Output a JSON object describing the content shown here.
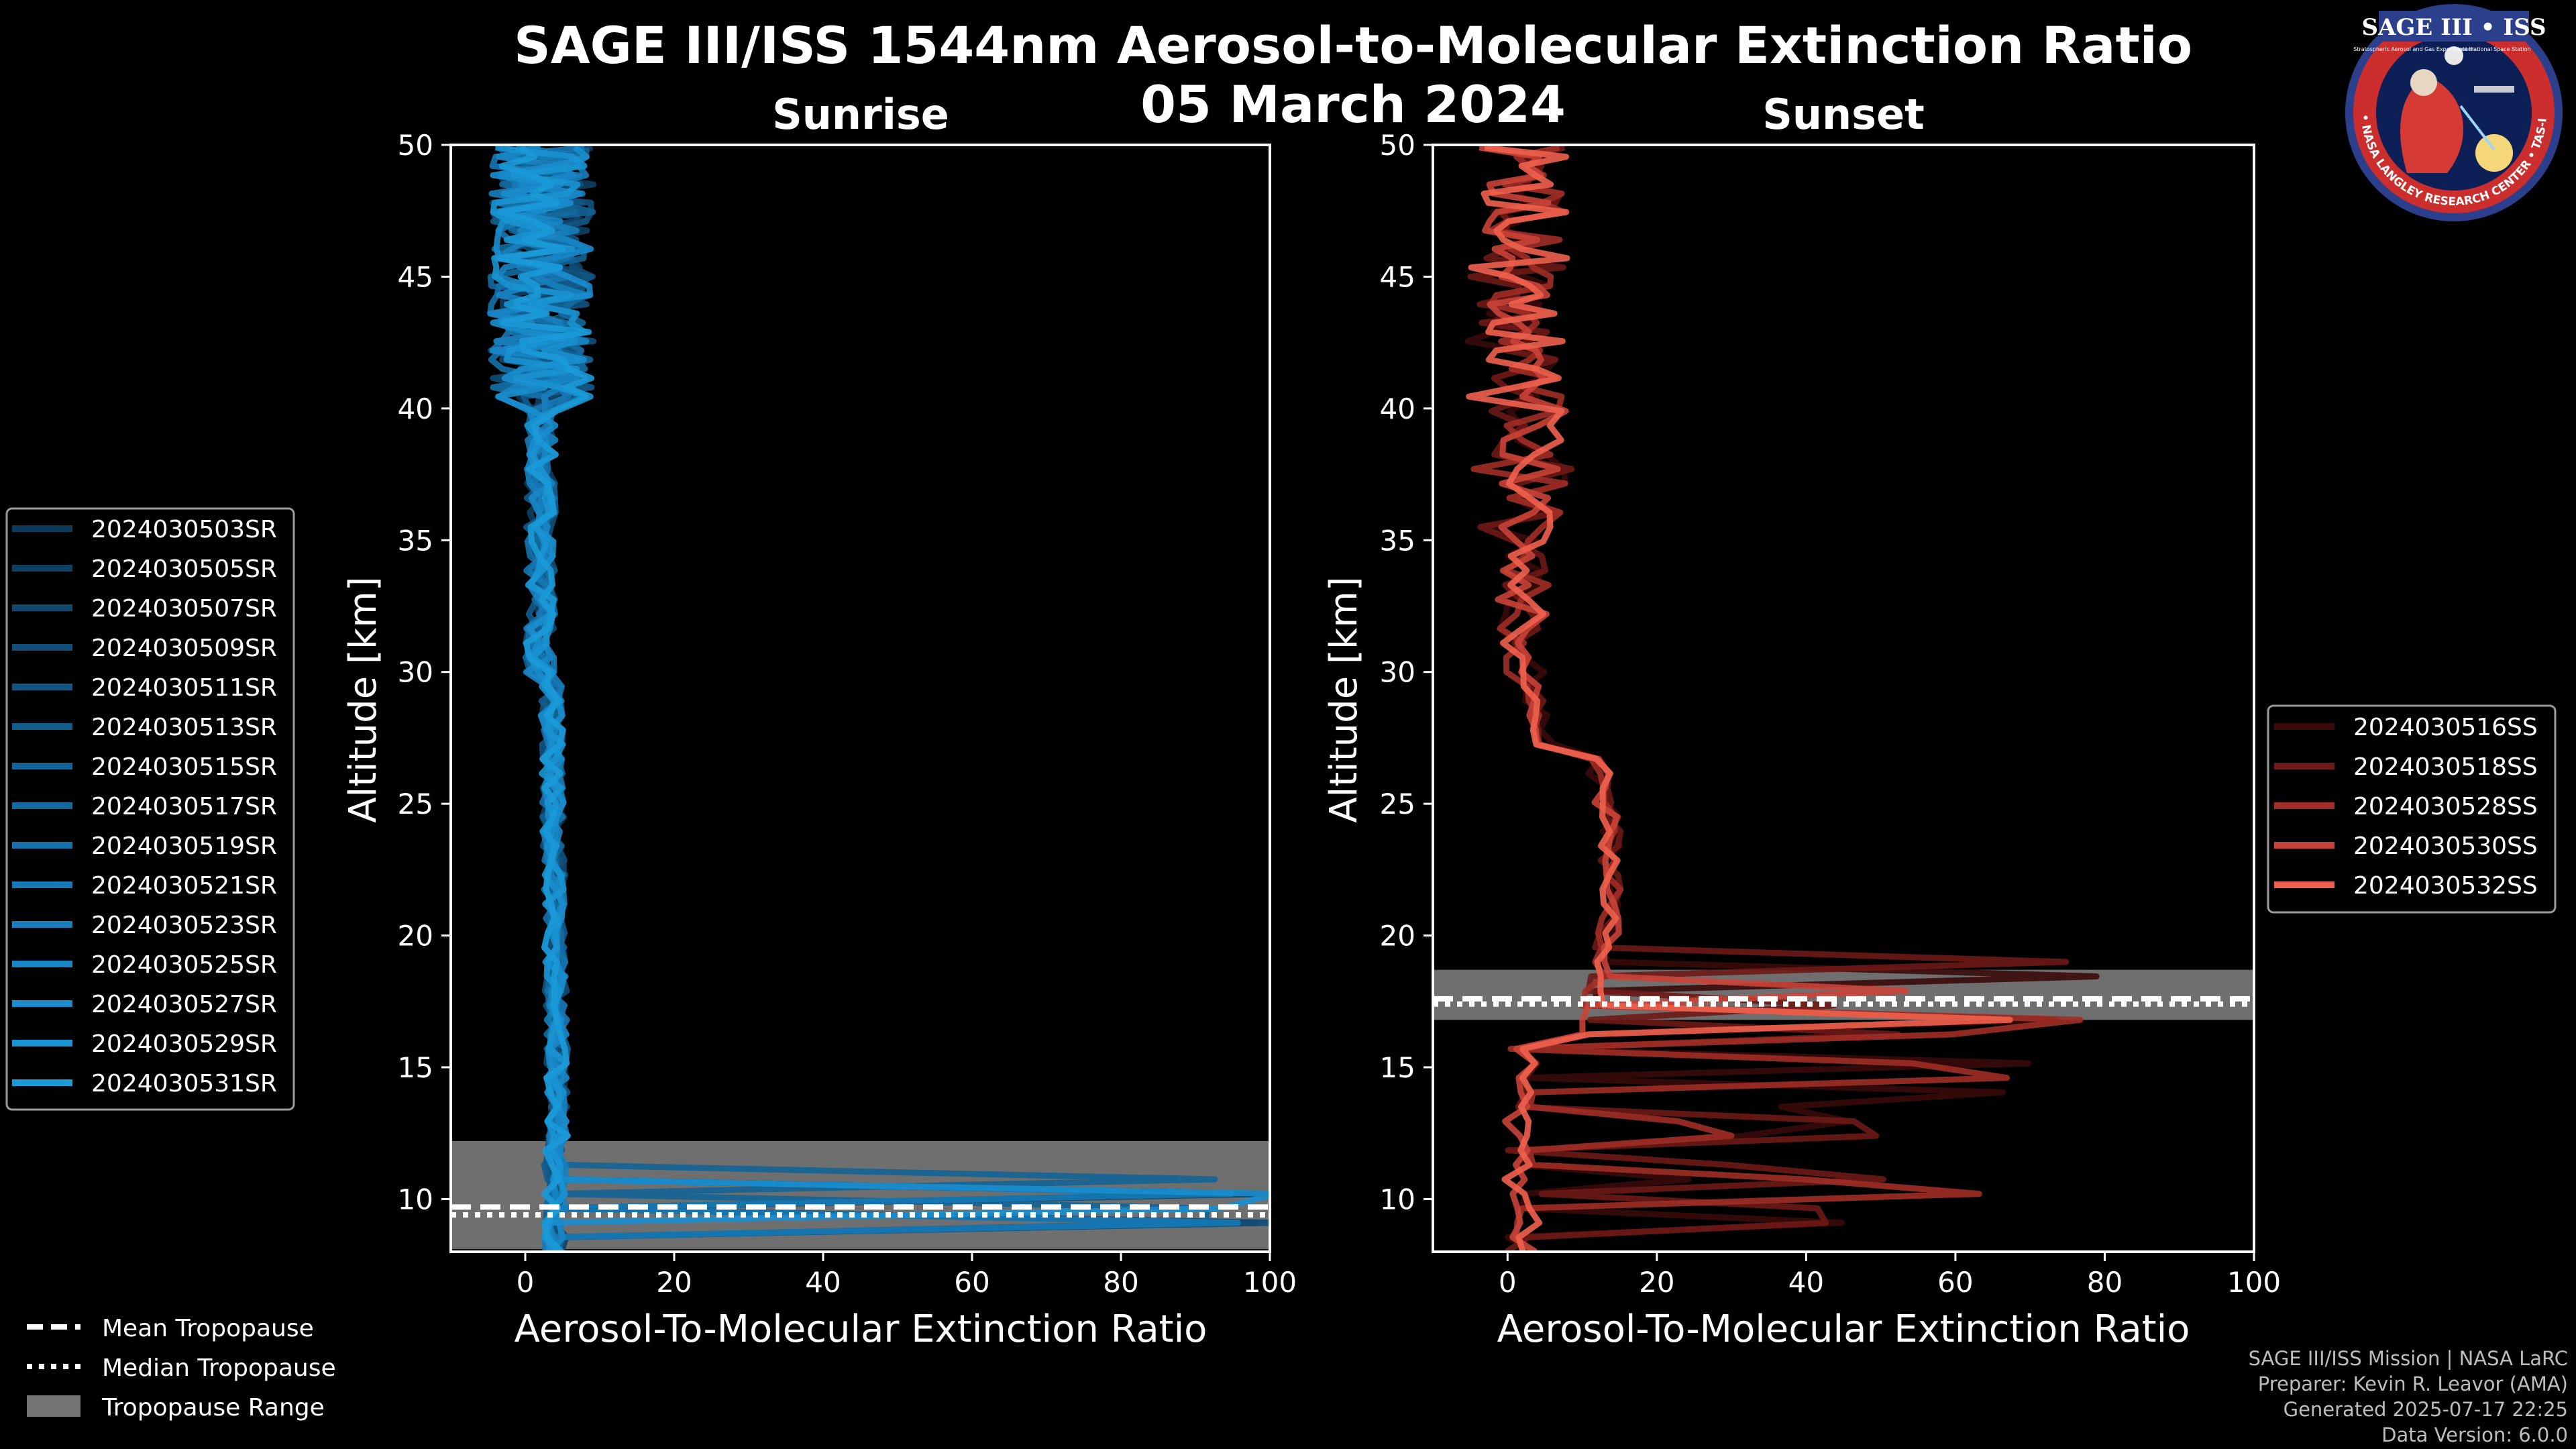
{
  "header": {
    "title_line1": "SAGE III/ISS 1544nm Aerosol-to-Molecular Extinction Ratio",
    "title_line2": "05 March 2024"
  },
  "logo": {
    "text": "SAGE III • ISS",
    "sub_left": "Stratospheric Aerosol and Gas Experiment III",
    "sub_right": "International Space Station",
    "ring": "BALL • NASA LANGLEY RESEARCH CENTER • TAS-I • ESA"
  },
  "footer": {
    "line1": "SAGE III/ISS Mission | NASA LaRC",
    "line2": "Preparer: Kevin R. Leavor (AMA)",
    "line3": "Generated 2025-07-17 22:25",
    "line4": "Data Version: 6.0.0"
  },
  "tropopause_legend": {
    "mean": "Mean Tropopause",
    "median": "Median Tropopause",
    "range": "Tropopause Range"
  },
  "colors": {
    "background": "#000000",
    "sunrise_line": "#1a9ad6",
    "sunset_line": "#f0604e",
    "tropopause_band": "#9a9a9a"
  },
  "chart_data": [
    {
      "type": "line",
      "title": "Sunrise",
      "xlabel": "Aerosol-To-Molecular Extinction Ratio",
      "ylabel": "Altitude [km]",
      "xlim": [
        -10,
        100
      ],
      "ylim": [
        8,
        50
      ],
      "xticks": [
        0,
        20,
        40,
        60,
        80,
        100
      ],
      "yticks": [
        10,
        15,
        20,
        25,
        30,
        35,
        40,
        45,
        50
      ],
      "tropopause": {
        "mean": 9.7,
        "median": 9.4,
        "range": [
          8.1,
          12.2
        ]
      },
      "legend_position": "left",
      "series": [
        {
          "name": "2024030503SR",
          "color": "#0d3a59"
        },
        {
          "name": "2024030505SR",
          "color": "#0e4062"
        },
        {
          "name": "2024030507SR",
          "color": "#0f476d"
        },
        {
          "name": "2024030509SR",
          "color": "#104e78"
        },
        {
          "name": "2024030511SR",
          "color": "#115582"
        },
        {
          "name": "2024030513SR",
          "color": "#125c8c"
        },
        {
          "name": "2024030515SR",
          "color": "#136396"
        },
        {
          "name": "2024030517SR",
          "color": "#146aa0"
        },
        {
          "name": "2024030519SR",
          "color": "#1571aa"
        },
        {
          "name": "2024030521SR",
          "color": "#1678b4"
        },
        {
          "name": "2024030523SR",
          "color": "#177fbd"
        },
        {
          "name": "2024030525SR",
          "color": "#1886c6"
        },
        {
          "name": "2024030527SR",
          "color": "#198dcd"
        },
        {
          "name": "2024030529SR",
          "color": "#1a93d2"
        },
        {
          "name": "2024030531SR",
          "color": "#1b9ad8"
        }
      ]
    },
    {
      "type": "line",
      "title": "Sunset",
      "xlabel": "Aerosol-To-Molecular Extinction Ratio",
      "ylabel": "Altitude [km]",
      "xlim": [
        -10,
        100
      ],
      "ylim": [
        8,
        50
      ],
      "xticks": [
        0,
        20,
        40,
        60,
        80,
        100
      ],
      "yticks": [
        10,
        15,
        20,
        25,
        30,
        35,
        40,
        45,
        50
      ],
      "tropopause": {
        "mean": 17.6,
        "median": 17.4,
        "range": [
          16.8,
          18.7
        ]
      },
      "legend_position": "right",
      "series": [
        {
          "name": "2024030516SS",
          "color": "#3a0a0a"
        },
        {
          "name": "2024030518SS",
          "color": "#6e1a16"
        },
        {
          "name": "2024030528SS",
          "color": "#a02e26"
        },
        {
          "name": "2024030530SS",
          "color": "#c94237"
        },
        {
          "name": "2024030532SS",
          "color": "#f0604e"
        }
      ]
    }
  ]
}
